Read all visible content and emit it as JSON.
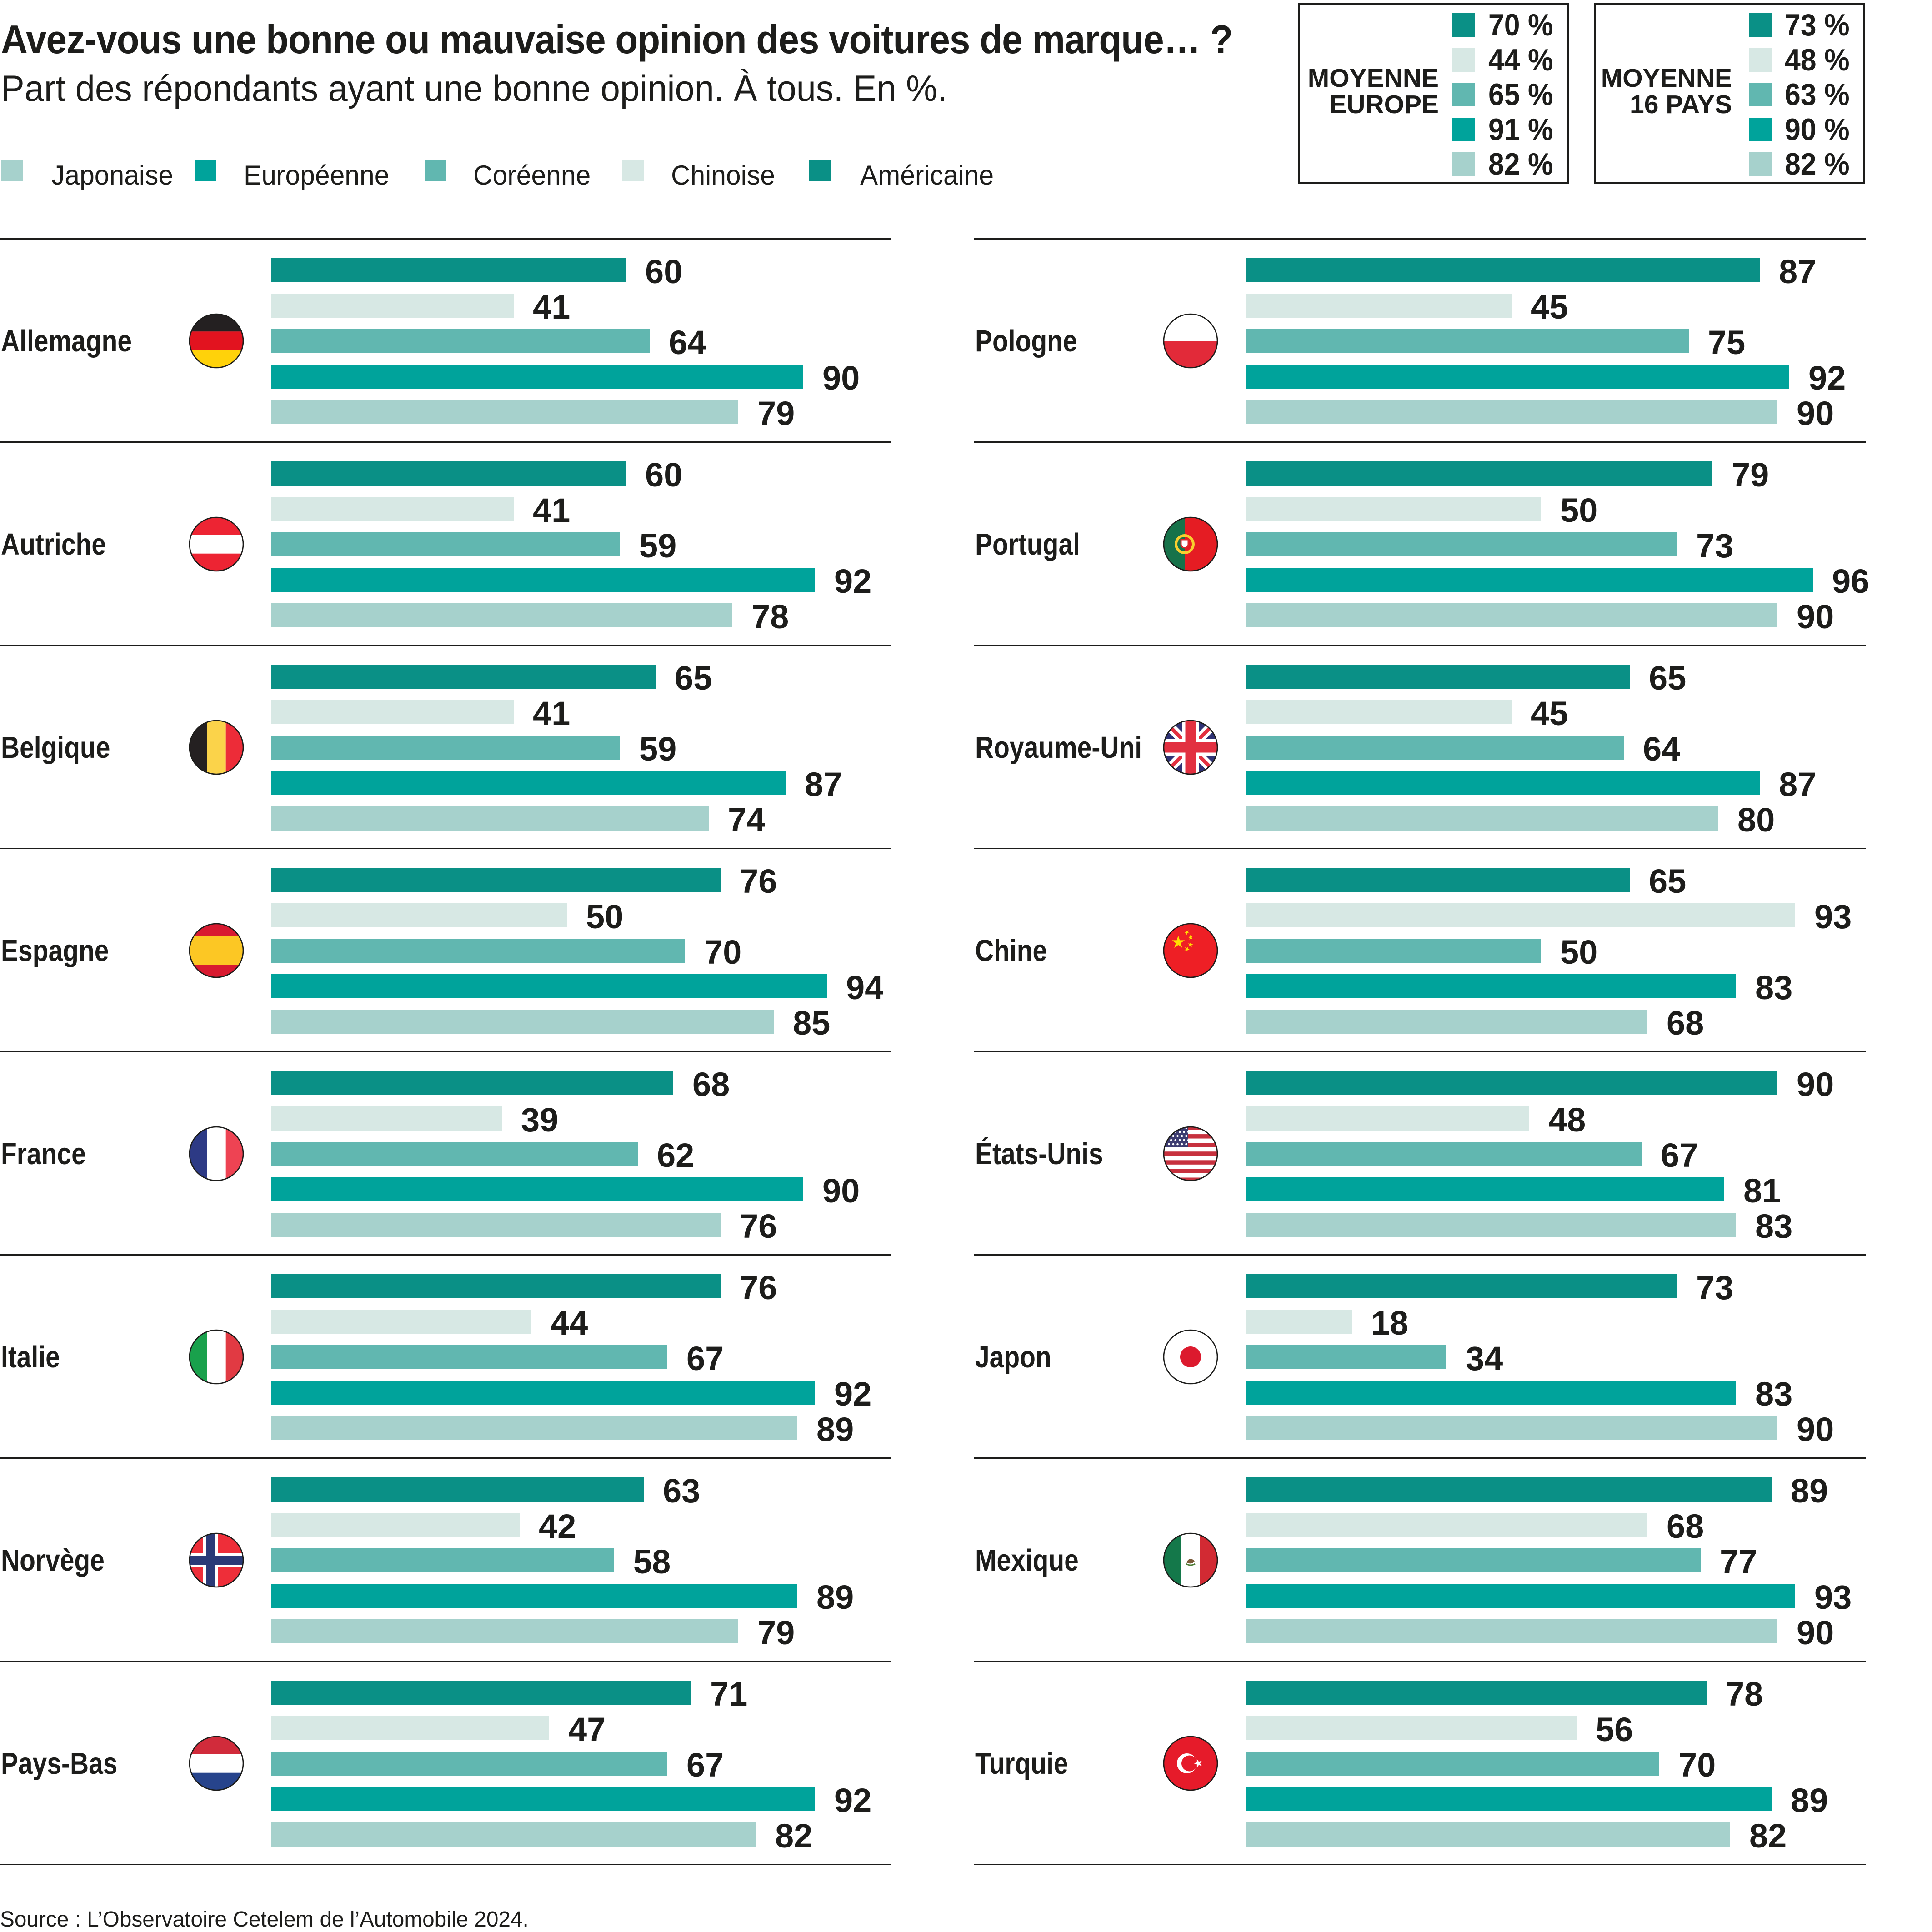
{
  "title": "Avez-vous une bonne ou mauvaise opinion des voitures de marque… ?",
  "subtitle": "Part des répondants ayant une bonne opinion. À tous. En %.",
  "source": "Source : L’Observatoire Cetelem de l’Automobile 2024.",
  "colors": {
    "japonaise": "#a6d1cc",
    "europeenne": "#00a39b",
    "coreenne": "#61b7b0",
    "chinoise": "#d7e8e4",
    "americaine": "#0a9086",
    "text": "#1d1d1b",
    "separator": "#1d1d1b",
    "background": "#ffffff"
  },
  "legend": [
    {
      "label": "Japonaise",
      "key": "japonaise"
    },
    {
      "label": "Européenne",
      "key": "europeenne"
    },
    {
      "label": "Coréenne",
      "key": "coreenne"
    },
    {
      "label": "Chinoise",
      "key": "chinoise"
    },
    {
      "label": "Américaine",
      "key": "americaine"
    }
  ],
  "average_boxes": [
    {
      "label_lines": [
        "MOYENNE",
        "EUROPE"
      ],
      "values": [
        "70 %",
        "44 %",
        "65 %",
        "91 %",
        "82 %"
      ],
      "numeric": {
        "americaine": 70,
        "chinoise": 44,
        "coreenne": 65,
        "europeenne": 91,
        "japonaise": 82
      }
    },
    {
      "label_lines": [
        "MOYENNE",
        "16 PAYS"
      ],
      "values": [
        "73 %",
        "48 %",
        "63 %",
        "90 %",
        "82 %"
      ],
      "numeric": {
        "americaine": 73,
        "chinoise": 48,
        "coreenne": 63,
        "europeenne": 90,
        "japonaise": 82
      }
    }
  ],
  "chart_data": {
    "type": "bar",
    "orientation": "horizontal",
    "unit": "percent of respondents with a good opinion",
    "xlim": [
      0,
      100
    ],
    "series_order": [
      "Américaine",
      "Chinoise",
      "Coréenne",
      "Européenne",
      "Japonaise"
    ],
    "series_keys": [
      "americaine",
      "chinoise",
      "coreenne",
      "europeenne",
      "japonaise"
    ],
    "countries": [
      {
        "name": "Allemagne",
        "flag": "de",
        "column": "left",
        "values": [
          60,
          41,
          64,
          90,
          79
        ]
      },
      {
        "name": "Autriche",
        "flag": "at",
        "column": "left",
        "values": [
          60,
          41,
          59,
          92,
          78
        ]
      },
      {
        "name": "Belgique",
        "flag": "be",
        "column": "left",
        "values": [
          65,
          41,
          59,
          87,
          74
        ]
      },
      {
        "name": "Espagne",
        "flag": "es",
        "column": "left",
        "values": [
          76,
          50,
          70,
          94,
          85
        ]
      },
      {
        "name": "France",
        "flag": "fr",
        "column": "left",
        "values": [
          68,
          39,
          62,
          90,
          76
        ]
      },
      {
        "name": "Italie",
        "flag": "it",
        "column": "left",
        "values": [
          76,
          44,
          67,
          92,
          89
        ]
      },
      {
        "name": "Norvège",
        "flag": "no",
        "column": "left",
        "values": [
          63,
          42,
          58,
          89,
          79
        ]
      },
      {
        "name": "Pays-Bas",
        "flag": "nl",
        "column": "left",
        "values": [
          71,
          47,
          67,
          92,
          82
        ]
      },
      {
        "name": "Pologne",
        "flag": "pl",
        "column": "right",
        "values": [
          87,
          45,
          75,
          92,
          90
        ]
      },
      {
        "name": "Portugal",
        "flag": "pt",
        "column": "right",
        "values": [
          79,
          50,
          73,
          96,
          90
        ]
      },
      {
        "name": "Royaume-Uni",
        "flag": "gb",
        "column": "right",
        "values": [
          65,
          45,
          64,
          87,
          80
        ]
      },
      {
        "name": "Chine",
        "flag": "cn",
        "column": "right",
        "values": [
          65,
          93,
          50,
          83,
          68
        ]
      },
      {
        "name": "États-Unis",
        "flag": "us",
        "column": "right",
        "values": [
          90,
          48,
          67,
          81,
          83
        ]
      },
      {
        "name": "Japon",
        "flag": "jp",
        "column": "right",
        "values": [
          73,
          18,
          34,
          83,
          90
        ]
      },
      {
        "name": "Mexique",
        "flag": "mx",
        "column": "right",
        "values": [
          89,
          68,
          77,
          93,
          90
        ]
      },
      {
        "name": "Turquie",
        "flag": "tr",
        "column": "right",
        "values": [
          78,
          56,
          70,
          89,
          82
        ]
      }
    ],
    "averages": [
      {
        "name": "MOYENNE EUROPE",
        "values": [
          70,
          44,
          65,
          91,
          82
        ]
      },
      {
        "name": "MOYENNE 16 PAYS",
        "values": [
          73,
          48,
          63,
          90,
          82
        ]
      }
    ]
  }
}
